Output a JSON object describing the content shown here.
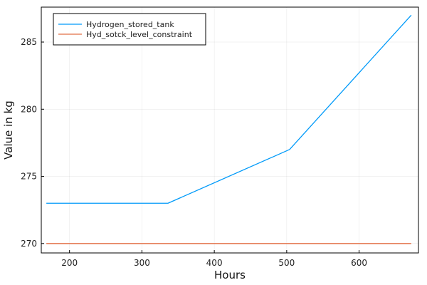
{
  "chart_data": {
    "type": "line",
    "title": "",
    "xlabel": "Hours",
    "ylabel": "Value in kg",
    "xlim": [
      161,
      682
    ],
    "ylim": [
      269.3,
      287.6
    ],
    "xticks": [
      200,
      300,
      400,
      500,
      600
    ],
    "yticks": [
      270,
      275,
      280,
      285
    ],
    "grid": true,
    "legend_position": "top-left",
    "series": [
      {
        "name": "Hydrogen_stored_tank",
        "color": "#009af9",
        "x": [
          168,
          336,
          504,
          672
        ],
        "y": [
          273,
          273,
          277,
          287
        ]
      },
      {
        "name": "Hyd_sotck_level_constraint",
        "color": "#e26f46",
        "x": [
          168,
          336,
          504,
          672
        ],
        "y": [
          270,
          270,
          270,
          270
        ]
      }
    ]
  }
}
